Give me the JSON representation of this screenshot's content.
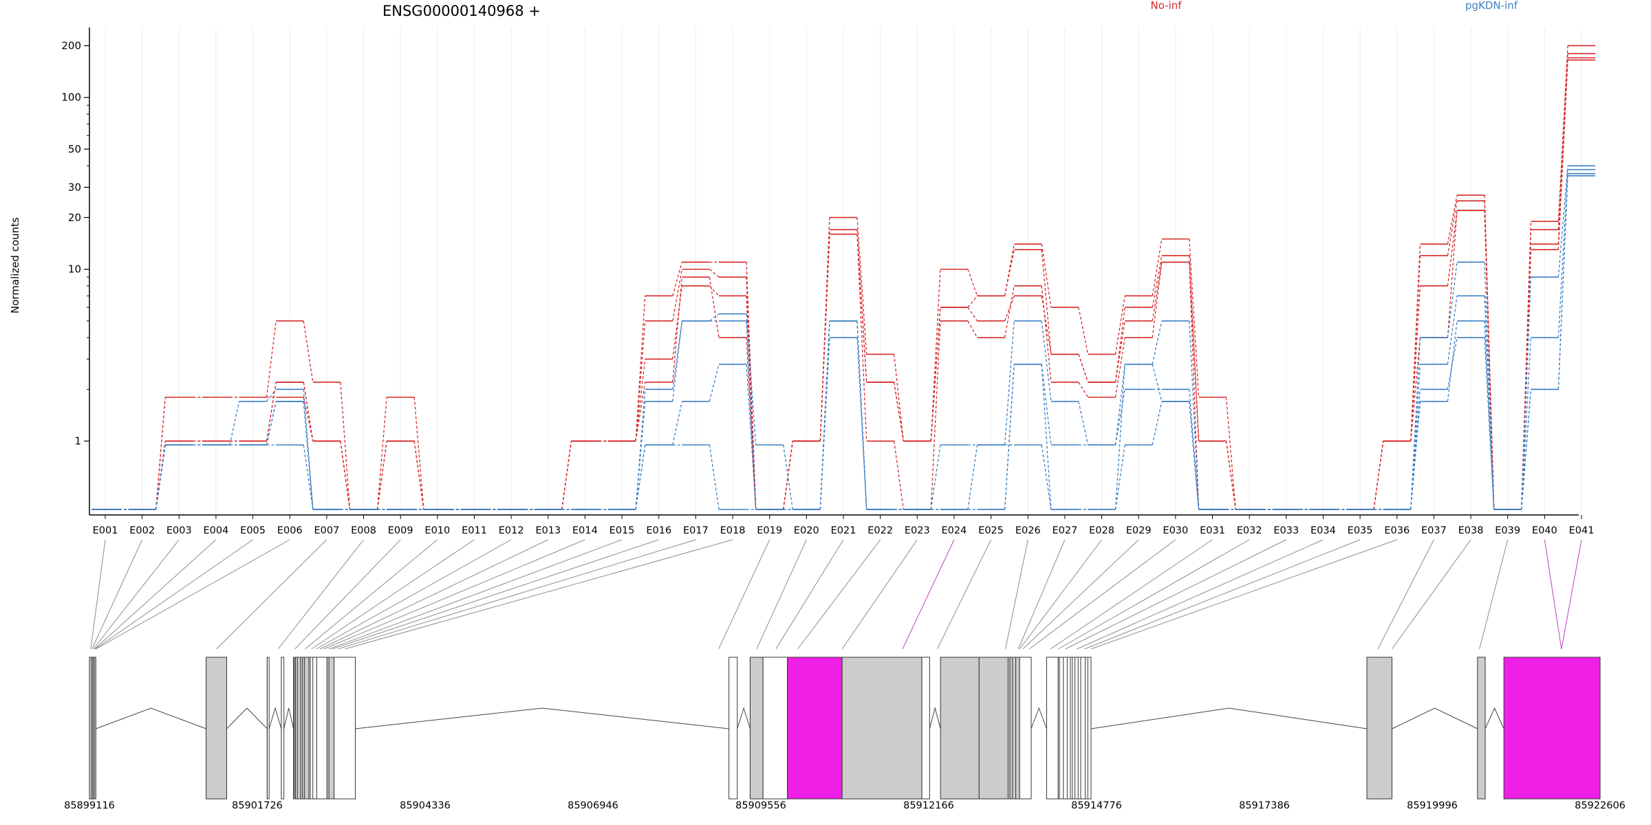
{
  "chart_data": {
    "type": "line",
    "title": "ENSG00000140968 +",
    "ylabel": "Normalized counts",
    "yscale": "log",
    "ylim": [
      0.4,
      260
    ],
    "yticks": [
      1,
      10,
      20,
      30,
      50,
      100,
      200
    ],
    "grid": "x",
    "legend_position": "top-right",
    "categories": [
      "E001",
      "E002",
      "E003",
      "E004",
      "E005",
      "E006",
      "E007",
      "E008",
      "E009",
      "E010",
      "E011",
      "E012",
      "E013",
      "E014",
      "E015",
      "E016",
      "E017",
      "E018",
      "E019",
      "E020",
      "E021",
      "E022",
      "E023",
      "E024",
      "E025",
      "E026",
      "E027",
      "E028",
      "E029",
      "E030",
      "E031",
      "E032",
      "E033",
      "E034",
      "E035",
      "E036",
      "E037",
      "E038",
      "E039",
      "E040",
      "E041"
    ],
    "series": [
      {
        "name": "No-inf",
        "group": "No-inf",
        "color": "#d62728",
        "values": [
          0.4,
          0.4,
          1.8,
          1.8,
          1.8,
          5.0,
          2.2,
          0.4,
          1.8,
          0.4,
          0.4,
          0.4,
          0.4,
          1.0,
          1.0,
          7.0,
          11.0,
          11.0,
          0.4,
          1.0,
          20.0,
          3.2,
          1.0,
          10.0,
          7.0,
          14.0,
          6.0,
          3.2,
          7.0,
          15.0,
          1.8,
          0.4,
          0.4,
          0.4,
          0.4,
          1.0,
          14.0,
          27.0,
          0.4,
          19.0,
          200.0
        ]
      },
      {
        "name": "No-inf",
        "group": "No-inf",
        "color": "#d62728",
        "values": [
          0.4,
          0.4,
          1.0,
          1.0,
          1.0,
          2.2,
          1.0,
          0.4,
          1.0,
          0.4,
          0.4,
          0.4,
          0.4,
          1.0,
          1.0,
          5.0,
          10.0,
          9.0,
          0.4,
          1.0,
          17.0,
          2.2,
          1.0,
          6.0,
          7.0,
          13.0,
          3.2,
          2.2,
          6.0,
          12.0,
          1.0,
          0.4,
          0.4,
          0.4,
          0.4,
          1.0,
          12.0,
          25.0,
          0.4,
          17.0,
          180.0
        ]
      },
      {
        "name": "No-inf",
        "group": "No-inf",
        "color": "#d62728",
        "values": [
          0.4,
          0.4,
          1.8,
          1.8,
          1.8,
          1.8,
          1.0,
          0.4,
          0.4,
          0.4,
          0.4,
          0.4,
          0.4,
          1.0,
          1.0,
          3.0,
          8.0,
          7.0,
          0.4,
          1.0,
          16.0,
          1.0,
          0.4,
          5.0,
          4.0,
          8.0,
          2.2,
          1.8,
          4.0,
          11.0,
          0.4,
          0.4,
          0.4,
          0.4,
          0.4,
          1.0,
          8.0,
          22.0,
          0.4,
          13.0,
          165.0
        ]
      },
      {
        "name": "No-inf",
        "group": "No-inf",
        "color": "#d62728",
        "values": [
          0.4,
          0.4,
          1.0,
          1.0,
          1.0,
          2.2,
          1.0,
          0.4,
          1.0,
          0.4,
          0.4,
          0.4,
          0.4,
          1.0,
          1.0,
          2.2,
          9.0,
          4.0,
          0.4,
          1.0,
          16.0,
          2.2,
          1.0,
          6.0,
          5.0,
          7.0,
          3.2,
          2.2,
          5.0,
          11.0,
          1.0,
          0.4,
          0.4,
          0.4,
          0.4,
          1.0,
          4.0,
          22.0,
          0.4,
          14.0,
          170.0
        ]
      },
      {
        "name": "pgKDN-inf",
        "group": "pgKDN-inf",
        "color": "#3b7fc4",
        "values": [
          0.4,
          0.4,
          0.95,
          0.95,
          1.7,
          2.0,
          0.4,
          0.4,
          0.4,
          0.4,
          0.4,
          0.4,
          0.4,
          0.4,
          0.4,
          1.7,
          5.0,
          5.5,
          0.95,
          0.4,
          5.0,
          0.4,
          0.4,
          0.95,
          0.95,
          5.0,
          1.7,
          0.95,
          2.8,
          5.0,
          0.4,
          0.4,
          0.4,
          0.4,
          0.4,
          0.4,
          4.0,
          11.0,
          0.4,
          9.0,
          40.0
        ]
      },
      {
        "name": "pgKDN-inf",
        "group": "pgKDN-inf",
        "color": "#3b7fc4",
        "values": [
          0.4,
          0.4,
          0.95,
          0.95,
          0.95,
          1.7,
          0.4,
          0.4,
          0.4,
          0.4,
          0.4,
          0.4,
          0.4,
          0.4,
          0.4,
          0.95,
          1.7,
          2.8,
          0.4,
          0.4,
          4.0,
          0.4,
          0.4,
          0.4,
          0.4,
          2.8,
          0.95,
          0.95,
          2.0,
          2.0,
          0.4,
          0.4,
          0.4,
          0.4,
          0.4,
          0.4,
          2.8,
          7.0,
          0.4,
          4.0,
          38.0
        ]
      },
      {
        "name": "pgKDN-inf",
        "group": "pgKDN-inf",
        "color": "#3b7fc4",
        "values": [
          0.4,
          0.4,
          0.95,
          0.95,
          0.95,
          0.95,
          0.4,
          0.4,
          0.4,
          0.4,
          0.4,
          0.4,
          0.4,
          0.4,
          0.4,
          0.95,
          0.95,
          0.4,
          0.4,
          0.4,
          5.0,
          0.4,
          0.4,
          0.4,
          0.95,
          0.95,
          0.4,
          0.4,
          0.95,
          1.7,
          0.4,
          0.4,
          0.4,
          0.4,
          0.4,
          0.4,
          2.0,
          4.0,
          0.4,
          2.0,
          35.0
        ]
      },
      {
        "name": "pgKDN-inf",
        "group": "pgKDN-inf",
        "color": "#3b7fc4",
        "values": [
          0.4,
          0.4,
          0.95,
          0.95,
          0.95,
          1.7,
          0.4,
          0.4,
          0.4,
          0.4,
          0.4,
          0.4,
          0.4,
          0.4,
          0.4,
          2.0,
          5.0,
          5.0,
          0.4,
          0.4,
          5.0,
          0.4,
          0.4,
          0.4,
          0.4,
          2.8,
          0.4,
          0.4,
          2.8,
          1.7,
          0.4,
          0.4,
          0.4,
          0.4,
          0.4,
          0.4,
          1.7,
          5.0,
          0.4,
          2.0,
          36.0
        ]
      }
    ],
    "legend": [
      {
        "label": "No-inf",
        "color": "#d62728"
      },
      {
        "label": "pgKDN-inf",
        "color": "#3b7fc4"
      }
    ],
    "gene_model": {
      "range": [
        85899116,
        85922606
      ],
      "ticks": [
        85899116,
        85901726,
        85904336,
        85906946,
        85909556,
        85912166,
        85914776,
        85917386,
        85919996,
        85922606
      ],
      "exons": [
        {
          "start": 85899116,
          "end": 85899216,
          "fill": "#cccccc"
        },
        {
          "start": 85900930,
          "end": 85901250,
          "fill": "#cccccc"
        },
        {
          "start": 85901880,
          "end": 85901910,
          "fill": "#ffffff"
        },
        {
          "start": 85902100,
          "end": 85902140,
          "fill": "#ffffff"
        },
        {
          "start": 85902290,
          "end": 85902530,
          "fill": "#cccccc"
        },
        {
          "start": 85902530,
          "end": 85902810,
          "fill": "#ffffff"
        },
        {
          "start": 85902810,
          "end": 85902920,
          "fill": "#cccccc"
        },
        {
          "start": 85902920,
          "end": 85903250,
          "fill": "#ffffff"
        },
        {
          "start": 85909060,
          "end": 85909190,
          "fill": "#ffffff"
        },
        {
          "start": 85909390,
          "end": 85909590,
          "fill": "#cccccc"
        },
        {
          "start": 85909590,
          "end": 85909970,
          "fill": "#ffffff"
        },
        {
          "start": 85909970,
          "end": 85910820,
          "fill": "#f01fe6",
          "highlight": true
        },
        {
          "start": 85910820,
          "end": 85912060,
          "fill": "#cccccc"
        },
        {
          "start": 85912060,
          "end": 85912180,
          "fill": "#ffffff"
        },
        {
          "start": 85912350,
          "end": 85912950,
          "fill": "#cccccc"
        },
        {
          "start": 85912950,
          "end": 85913580,
          "fill": "#cccccc"
        },
        {
          "start": 85913580,
          "end": 85913760,
          "fill": "#ffffff"
        },
        {
          "start": 85914000,
          "end": 85914180,
          "fill": "#ffffff"
        },
        {
          "start": 85914180,
          "end": 85914690,
          "fill": "#ffffff"
        },
        {
          "start": 85918980,
          "end": 85919370,
          "fill": "#cccccc"
        },
        {
          "start": 85920700,
          "end": 85920820,
          "fill": "#cccccc"
        },
        {
          "start": 85921110,
          "end": 85922606,
          "fill": "#f01fe6",
          "highlight": true
        }
      ],
      "introns": [
        [
          85899216,
          85900930
        ],
        [
          85901250,
          85901880
        ],
        [
          85901910,
          85902100
        ],
        [
          85902140,
          85902290
        ],
        [
          85903250,
          85909060
        ],
        [
          85909190,
          85909390
        ],
        [
          85912180,
          85912350
        ],
        [
          85913760,
          85914000
        ],
        [
          85914690,
          85918980
        ],
        [
          85919370,
          85920700
        ],
        [
          85920820,
          85921110
        ]
      ],
      "lines": [
        85899136,
        85899156,
        85899176,
        85899196,
        85899206,
        85899216,
        85901090,
        85902050,
        85902310,
        85902470,
        85902570,
        85902640,
        85902700,
        85902760,
        85902840,
        85902890,
        85902980,
        85903090,
        85908900,
        85909490,
        85909790,
        85910130,
        85910820,
        85911760,
        85912300,
        85913360,
        85913560,
        85913580,
        85913630,
        85913730,
        85914060,
        85914180,
        85914290,
        85914470,
        85914590,
        85914690,
        85919150,
        85919370,
        85920730,
        85922005
      ],
      "thin_marks": [
        85899150,
        85899170,
        85899190,
        85901880,
        85902100,
        85902300,
        85902320,
        85902350,
        85902400,
        85902430,
        85902460,
        85902550,
        85902590,
        85902650,
        85902840,
        85909390,
        85913400,
        85913430,
        85913470,
        85913520,
        85914200,
        85914260,
        85914320,
        85914370,
        85914400,
        85914440,
        85914490,
        85914530,
        85914600,
        85914640
      ]
    }
  }
}
